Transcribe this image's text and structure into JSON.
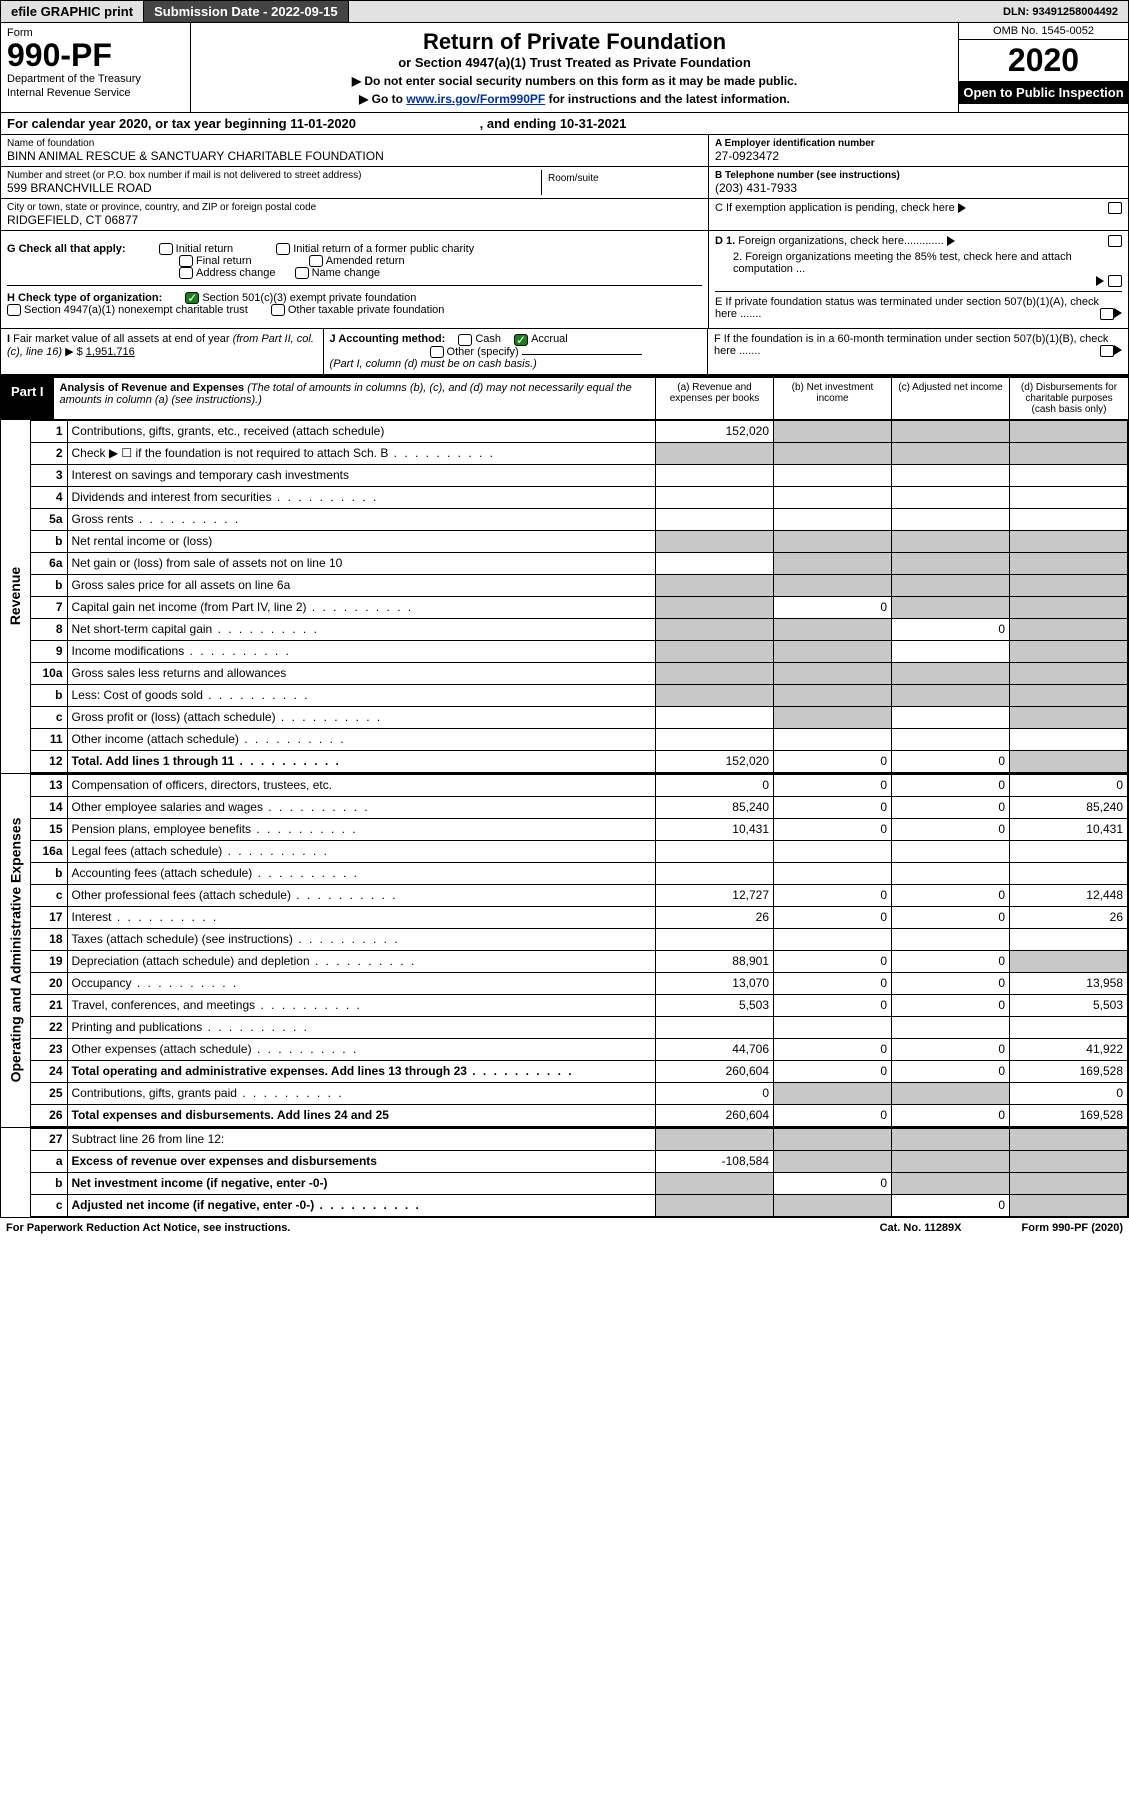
{
  "topbar": {
    "efile": "efile GRAPHIC print",
    "subdate_lbl": "Submission Date - ",
    "subdate": "2022-09-15",
    "dln_lbl": "DLN: ",
    "dln": "93491258004492"
  },
  "header": {
    "form": "Form",
    "form_num": "990-PF",
    "dept": "Department of the Treasury",
    "irs": "Internal Revenue Service",
    "title": "Return of Private Foundation",
    "subtitle": "or Section 4947(a)(1) Trust Treated as Private Foundation",
    "note1": "▶ Do not enter social security numbers on this form as it may be made public.",
    "note2_pre": "▶ Go to ",
    "note2_link": "www.irs.gov/Form990PF",
    "note2_post": " for instructions and the latest information.",
    "omb": "OMB No. 1545-0052",
    "year": "2020",
    "open": "Open to Public Inspection"
  },
  "calyear": {
    "pre": "For calendar year 2020, or tax year beginning ",
    "begin": "11-01-2020",
    "mid": " , and ending ",
    "end": "10-31-2021"
  },
  "id": {
    "name_lbl": "Name of foundation",
    "name": "BINN ANIMAL RESCUE & SANCTUARY CHARITABLE FOUNDATION",
    "addr_lbl": "Number and street (or P.O. box number if mail is not delivered to street address)",
    "addr": "599 BRANCHVILLE ROAD",
    "room_lbl": "Room/suite",
    "city_lbl": "City or town, state or province, country, and ZIP or foreign postal code",
    "city": "RIDGEFIELD, CT  06877",
    "ein_lbl": "A Employer identification number",
    "ein": "27-0923472",
    "tel_lbl": "B Telephone number (see instructions)",
    "tel": "(203) 431-7933",
    "c": "C If exemption application is pending, check here",
    "d1": "D 1. Foreign organizations, check here.............",
    "d2": "2. Foreign organizations meeting the 85% test, check here and attach computation ...",
    "e": "E  If private foundation status was terminated under section 507(b)(1)(A), check here .......",
    "f": "F  If the foundation is in a 60-month termination under section 507(b)(1)(B), check here .......",
    "g_lbl": "G Check all that apply:",
    "g_opts": [
      "Initial return",
      "Final return",
      "Address change",
      "Initial return of a former public charity",
      "Amended return",
      "Name change"
    ],
    "h_lbl": "H Check type of organization:",
    "h1": "Section 501(c)(3) exempt private foundation",
    "h2": "Section 4947(a)(1) nonexempt charitable trust",
    "h3": "Other taxable private foundation",
    "i_lbl": "I Fair market value of all assets at end of year (from Part II, col. (c), line 16) ▶ $ ",
    "i_val": "1,951,716",
    "j_lbl": "J Accounting method:",
    "j_opts": [
      "Cash",
      "Accrual"
    ],
    "j_other": "Other (specify)",
    "j_note": "(Part I, column (d) must be on cash basis.)"
  },
  "part1": {
    "tab": "Part I",
    "title": "Analysis of Revenue and Expenses",
    "title_note": " (The total of amounts in columns (b), (c), and (d) may not necessarily equal the amounts in column (a) (see instructions).)",
    "col_a": "(a)    Revenue and expenses per books",
    "col_b": "(b)    Net investment income",
    "col_c": "(c)    Adjusted net income",
    "col_d": "(d)    Disbursements for charitable purposes (cash basis only)"
  },
  "side": {
    "rev": "Revenue",
    "exp": "Operating and Administrative Expenses"
  },
  "rows_rev": [
    {
      "n": "1",
      "d": "Contributions, gifts, grants, etc., received (attach schedule)",
      "a": "152,020",
      "shadeB": true,
      "shadeC": true,
      "shadeD": true
    },
    {
      "n": "2",
      "d": "Check ▶ ☐ if the foundation is not required to attach Sch. B",
      "dots": true,
      "shadeA": true,
      "shadeB": true,
      "shadeC": true,
      "shadeD": true
    },
    {
      "n": "3",
      "d": "Interest on savings and temporary cash investments"
    },
    {
      "n": "4",
      "d": "Dividends and interest from securities",
      "dots": true
    },
    {
      "n": "5a",
      "d": "Gross rents",
      "dots": true
    },
    {
      "n": "b",
      "d": "Net rental income or (loss)",
      "shadeA": true,
      "shadeB": true,
      "shadeC": true,
      "shadeD": true
    },
    {
      "n": "6a",
      "d": "Net gain or (loss) from sale of assets not on line 10",
      "shadeB": true,
      "shadeC": true,
      "shadeD": true
    },
    {
      "n": "b",
      "d": "Gross sales price for all assets on line 6a",
      "shadeA": true,
      "shadeB": true,
      "shadeC": true,
      "shadeD": true
    },
    {
      "n": "7",
      "d": "Capital gain net income (from Part IV, line 2)",
      "dots": true,
      "shadeA": true,
      "b": "0",
      "shadeC": true,
      "shadeD": true
    },
    {
      "n": "8",
      "d": "Net short-term capital gain",
      "dots": true,
      "shadeA": true,
      "shadeB": true,
      "c": "0",
      "shadeD": true
    },
    {
      "n": "9",
      "d": "Income modifications",
      "dots": true,
      "shadeA": true,
      "shadeB": true,
      "shadeD": true
    },
    {
      "n": "10a",
      "d": "Gross sales less returns and allowances",
      "shadeA": true,
      "shadeB": true,
      "shadeC": true,
      "shadeD": true
    },
    {
      "n": "b",
      "d": "Less: Cost of goods sold",
      "dots": true,
      "shadeA": true,
      "shadeB": true,
      "shadeC": true,
      "shadeD": true
    },
    {
      "n": "c",
      "d": "Gross profit or (loss) (attach schedule)",
      "dots": true,
      "shadeB": true,
      "shadeD": true
    },
    {
      "n": "11",
      "d": "Other income (attach schedule)",
      "dots": true
    },
    {
      "n": "12",
      "d": "Total. Add lines 1 through 11",
      "dots": true,
      "bold": true,
      "a": "152,020",
      "b": "0",
      "c": "0",
      "shadeD": true
    }
  ],
  "rows_exp": [
    {
      "n": "13",
      "d": "Compensation of officers, directors, trustees, etc.",
      "a": "0",
      "b": "0",
      "c": "0",
      "dd": "0"
    },
    {
      "n": "14",
      "d": "Other employee salaries and wages",
      "dots": true,
      "a": "85,240",
      "b": "0",
      "c": "0",
      "dd": "85,240"
    },
    {
      "n": "15",
      "d": "Pension plans, employee benefits",
      "dots": true,
      "a": "10,431",
      "b": "0",
      "c": "0",
      "dd": "10,431"
    },
    {
      "n": "16a",
      "d": "Legal fees (attach schedule)",
      "dots": true
    },
    {
      "n": "b",
      "d": "Accounting fees (attach schedule)",
      "dots": true
    },
    {
      "n": "c",
      "d": "Other professional fees (attach schedule)",
      "dots": true,
      "a": "12,727",
      "b": "0",
      "c": "0",
      "dd": "12,448"
    },
    {
      "n": "17",
      "d": "Interest",
      "dots": true,
      "a": "26",
      "b": "0",
      "c": "0",
      "dd": "26"
    },
    {
      "n": "18",
      "d": "Taxes (attach schedule) (see instructions)",
      "dots": true
    },
    {
      "n": "19",
      "d": "Depreciation (attach schedule) and depletion",
      "dots": true,
      "a": "88,901",
      "b": "0",
      "c": "0",
      "shadeD": true
    },
    {
      "n": "20",
      "d": "Occupancy",
      "dots": true,
      "a": "13,070",
      "b": "0",
      "c": "0",
      "dd": "13,958"
    },
    {
      "n": "21",
      "d": "Travel, conferences, and meetings",
      "dots": true,
      "a": "5,503",
      "b": "0",
      "c": "0",
      "dd": "5,503"
    },
    {
      "n": "22",
      "d": "Printing and publications",
      "dots": true
    },
    {
      "n": "23",
      "d": "Other expenses (attach schedule)",
      "dots": true,
      "a": "44,706",
      "b": "0",
      "c": "0",
      "dd": "41,922"
    },
    {
      "n": "24",
      "d": "Total operating and administrative expenses. Add lines 13 through 23",
      "dots": true,
      "bold": true,
      "a": "260,604",
      "b": "0",
      "c": "0",
      "dd": "169,528"
    },
    {
      "n": "25",
      "d": "Contributions, gifts, grants paid",
      "dots": true,
      "a": "0",
      "shadeB": true,
      "shadeC": true,
      "dd": "0"
    },
    {
      "n": "26",
      "d": "Total expenses and disbursements. Add lines 24 and 25",
      "bold": true,
      "a": "260,604",
      "b": "0",
      "c": "0",
      "dd": "169,528"
    }
  ],
  "rows_bot": [
    {
      "n": "27",
      "d": "Subtract line 26 from line 12:",
      "shadeA": true,
      "shadeB": true,
      "shadeC": true,
      "shadeD": true
    },
    {
      "n": "a",
      "d": "Excess of revenue over expenses and disbursements",
      "bold": true,
      "a": "-108,584",
      "shadeB": true,
      "shadeC": true,
      "shadeD": true
    },
    {
      "n": "b",
      "d": "Net investment income (if negative, enter -0-)",
      "bold": true,
      "shadeA": true,
      "b": "0",
      "shadeC": true,
      "shadeD": true
    },
    {
      "n": "c",
      "d": "Adjusted net income (if negative, enter -0-)",
      "bold": true,
      "dots": true,
      "shadeA": true,
      "shadeB": true,
      "c": "0",
      "shadeD": true
    }
  ],
  "footer": {
    "left": "For Paperwork Reduction Act Notice, see instructions.",
    "mid": "Cat. No. 11289X",
    "right": "Form 990-PF (2020)"
  },
  "colors": {
    "shade": "#c8c8c8",
    "link": "#003399",
    "check": "#1a7f1a"
  }
}
